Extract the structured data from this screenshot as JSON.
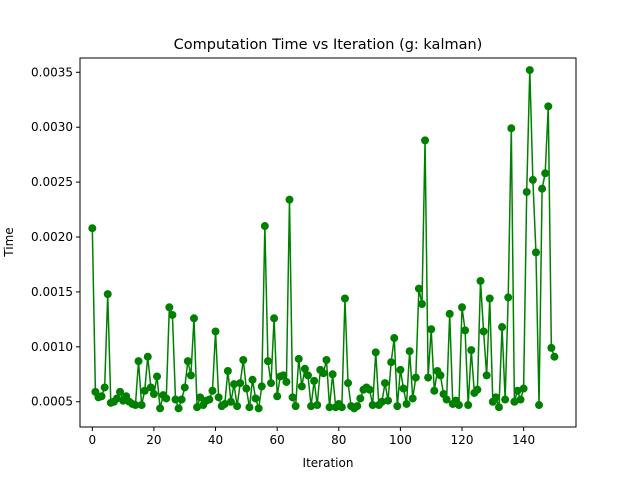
{
  "chart_data": {
    "type": "line",
    "title": "Computation Time vs Iteration (g: kalman)",
    "xlabel": "Iteration",
    "ylabel": "Time",
    "xlim": [
      -4,
      157
    ],
    "ylim": [
      0.00027,
      0.00363
    ],
    "xticks": [
      0,
      20,
      40,
      60,
      80,
      100,
      120,
      140
    ],
    "xtick_labels": [
      "0",
      "20",
      "40",
      "60",
      "80",
      "100",
      "120",
      "140"
    ],
    "yticks": [
      0.0005,
      0.001,
      0.0015,
      0.002,
      0.0025,
      0.003,
      0.0035
    ],
    "ytick_labels": [
      "0.0005",
      "0.0010",
      "0.0015",
      "0.0020",
      "0.0025",
      "0.0030",
      "0.0035"
    ],
    "grid": false,
    "legend": "none",
    "series": [
      {
        "color": "#008000",
        "marker": "circle",
        "x": [
          0,
          1,
          2,
          3,
          4,
          5,
          6,
          7,
          8,
          9,
          10,
          11,
          12,
          13,
          14,
          15,
          16,
          17,
          18,
          19,
          20,
          21,
          22,
          23,
          24,
          25,
          26,
          27,
          28,
          29,
          30,
          31,
          32,
          33,
          34,
          35,
          36,
          37,
          38,
          39,
          40,
          41,
          42,
          43,
          44,
          45,
          46,
          47,
          48,
          49,
          50,
          51,
          52,
          53,
          54,
          55,
          56,
          57,
          58,
          59,
          60,
          61,
          62,
          63,
          64,
          65,
          66,
          67,
          68,
          69,
          70,
          71,
          72,
          73,
          74,
          75,
          76,
          77,
          78,
          79,
          80,
          81,
          82,
          83,
          84,
          85,
          86,
          87,
          88,
          89,
          90,
          91,
          92,
          93,
          94,
          95,
          96,
          97,
          98,
          99,
          100,
          101,
          102,
          103,
          104,
          105,
          106,
          107,
          108,
          109,
          110,
          111,
          112,
          113,
          114,
          115,
          116,
          117,
          118,
          119,
          120,
          121,
          122,
          123,
          124,
          125,
          126,
          127,
          128,
          129,
          130,
          131,
          132,
          133,
          134,
          135,
          136,
          137,
          138,
          139,
          140,
          141,
          142,
          143,
          144,
          145,
          146,
          147,
          148,
          149,
          150
        ],
        "y": [
          0.00208,
          0.00059,
          0.00054,
          0.00055,
          0.00063,
          0.00148,
          0.00049,
          0.0005,
          0.00053,
          0.00059,
          0.00051,
          0.00055,
          0.0005,
          0.00048,
          0.00047,
          0.00087,
          0.00047,
          0.0006,
          0.00091,
          0.00063,
          0.00057,
          0.00073,
          0.00044,
          0.00056,
          0.00053,
          0.00136,
          0.00129,
          0.00052,
          0.00044,
          0.00052,
          0.00063,
          0.00087,
          0.00074,
          0.00126,
          0.00045,
          0.00054,
          0.00047,
          0.00051,
          0.00052,
          0.0006,
          0.00114,
          0.00054,
          0.00046,
          0.00048,
          0.00078,
          0.0005,
          0.00066,
          0.00046,
          0.00067,
          0.00088,
          0.00062,
          0.00045,
          0.0007,
          0.00053,
          0.00044,
          0.00064,
          0.0021,
          0.00087,
          0.00067,
          0.00126,
          0.00055,
          0.00073,
          0.00074,
          0.00068,
          0.00234,
          0.00054,
          0.00046,
          0.00089,
          0.00064,
          0.0008,
          0.00074,
          0.00046,
          0.00069,
          0.00047,
          0.00079,
          0.00076,
          0.00088,
          0.00045,
          0.00075,
          0.00045,
          0.00048,
          0.00045,
          0.00144,
          0.00067,
          0.00046,
          0.00044,
          0.00046,
          0.00053,
          0.00061,
          0.00063,
          0.00061,
          0.00047,
          0.00095,
          0.00047,
          0.0005,
          0.00067,
          0.00051,
          0.00086,
          0.00108,
          0.00046,
          0.00079,
          0.00062,
          0.00048,
          0.00096,
          0.00053,
          0.00072,
          0.00153,
          0.00139,
          0.00288,
          0.00072,
          0.00116,
          0.0006,
          0.00078,
          0.00074,
          0.00057,
          0.00052,
          0.0013,
          0.00048,
          0.00051,
          0.00047,
          0.00136,
          0.00115,
          0.00047,
          0.00097,
          0.00058,
          0.00061,
          0.0016,
          0.00114,
          0.00074,
          0.00144,
          0.0005,
          0.00054,
          0.00045,
          0.00118,
          0.00052,
          0.00145,
          0.00299,
          0.0005,
          0.0006,
          0.00052,
          0.00062,
          0.00241,
          0.00352,
          0.00252,
          0.00186,
          0.00047,
          0.00244,
          0.00258,
          0.00319,
          0.00099,
          0.00091
        ]
      }
    ]
  }
}
